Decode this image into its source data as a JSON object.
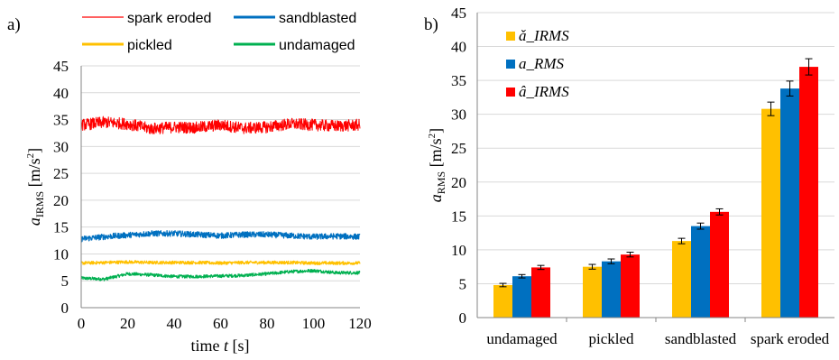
{
  "chart_data": [
    {
      "type": "line",
      "panel_label": "a)",
      "xlabel": {
        "text": "time",
        "var": "t",
        "unit": "[s]"
      },
      "ylabel": {
        "var": "a",
        "sub": "IRMS",
        "unit": "[m/s",
        "sup": "2",
        "close": "]"
      },
      "xlim": [
        0,
        120
      ],
      "ylim": [
        0,
        45
      ],
      "xticks": [
        0,
        20,
        40,
        60,
        80,
        100,
        120
      ],
      "yticks": [
        0,
        5,
        10,
        15,
        20,
        25,
        30,
        35,
        40,
        45
      ],
      "grid": "horizontal",
      "legend_position": "top",
      "series": [
        {
          "name": "spark eroded",
          "color": "#ff0000",
          "x": [
            0,
            10,
            20,
            30,
            40,
            50,
            60,
            70,
            80,
            90,
            100,
            110,
            120
          ],
          "values": [
            34.0,
            34.5,
            34.2,
            33.3,
            33.6,
            33.5,
            34.0,
            33.4,
            33.6,
            34.2,
            34.0,
            33.8,
            34.0
          ],
          "noise": 1.1
        },
        {
          "name": "sandblasted",
          "color": "#0070c0",
          "x": [
            0,
            10,
            20,
            30,
            40,
            50,
            60,
            70,
            80,
            90,
            100,
            110,
            120
          ],
          "values": [
            12.8,
            13.2,
            13.5,
            13.8,
            13.8,
            13.6,
            13.4,
            13.6,
            13.6,
            13.4,
            13.2,
            13.3,
            13.2
          ],
          "noise": 0.55
        },
        {
          "name": "pickled",
          "color": "#ffc000",
          "x": [
            0,
            10,
            20,
            30,
            40,
            50,
            60,
            70,
            80,
            90,
            100,
            110,
            120
          ],
          "values": [
            8.3,
            8.4,
            8.5,
            8.4,
            8.4,
            8.4,
            8.3,
            8.4,
            8.4,
            8.4,
            8.3,
            8.3,
            8.3
          ],
          "noise": 0.3
        },
        {
          "name": "undamaged",
          "color": "#00b050",
          "x": [
            0,
            10,
            20,
            30,
            40,
            50,
            60,
            70,
            80,
            90,
            100,
            110,
            120
          ],
          "values": [
            5.5,
            5.3,
            6.3,
            6.1,
            5.8,
            5.8,
            5.9,
            6.0,
            6.3,
            6.7,
            6.9,
            6.5,
            6.5
          ],
          "noise": 0.3
        }
      ]
    },
    {
      "type": "bar",
      "panel_label": "b)",
      "ylabel": {
        "var": "a",
        "sub": "RMS",
        "unit": "[m/s",
        "sup": "2",
        "close": "]"
      },
      "categories": [
        "undamaged",
        "pickled",
        "sandblasted",
        "spark eroded"
      ],
      "ylim": [
        0,
        45
      ],
      "yticks": [
        0,
        5,
        10,
        15,
        20,
        25,
        30,
        35,
        40,
        45
      ],
      "grid": "horizontal",
      "legend_position": "top-left",
      "series": [
        {
          "name": "ǎ_IRMS",
          "color": "#ffc000",
          "values": [
            4.8,
            7.5,
            11.3,
            30.8
          ],
          "errors": [
            0.25,
            0.35,
            0.4,
            1.0
          ]
        },
        {
          "name": "a_RMS",
          "color": "#0070c0",
          "values": [
            6.1,
            8.3,
            13.5,
            33.8
          ],
          "errors": [
            0.25,
            0.35,
            0.45,
            1.1
          ]
        },
        {
          "name": "â_IRMS",
          "color": "#ff0000",
          "values": [
            7.4,
            9.3,
            15.6,
            37.0
          ],
          "errors": [
            0.3,
            0.35,
            0.45,
            1.2
          ]
        }
      ]
    }
  ]
}
